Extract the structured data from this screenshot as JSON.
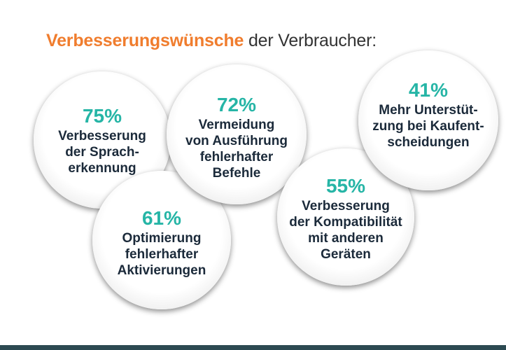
{
  "title": {
    "accent": "Verbesserungswünsche",
    "rest": " der Verbraucher:"
  },
  "colors": {
    "accent": "#f07d2e",
    "percent": "#26b5a6",
    "text": "#1b2a3a",
    "bottom_bar": "#2c4a52"
  },
  "bubbles": [
    {
      "percent": "75%",
      "lines": [
        "Verbesserung",
        "der Sprach-",
        "erkennung"
      ]
    },
    {
      "percent": "61%",
      "lines": [
        "Optimierung",
        "fehlerhafter",
        "Aktivierungen"
      ]
    },
    {
      "percent": "72%",
      "lines": [
        "Vermeidung",
        "von Ausführung",
        "fehlerhafter",
        "Befehle"
      ]
    },
    {
      "percent": "55%",
      "lines": [
        "Verbesserung",
        "der Kompatibilität",
        "mit anderen",
        "Geräten"
      ]
    },
    {
      "percent": "41%",
      "lines": [
        "Mehr Unterstüt-",
        "zung bei Kaufent-",
        "scheidungen"
      ]
    }
  ]
}
